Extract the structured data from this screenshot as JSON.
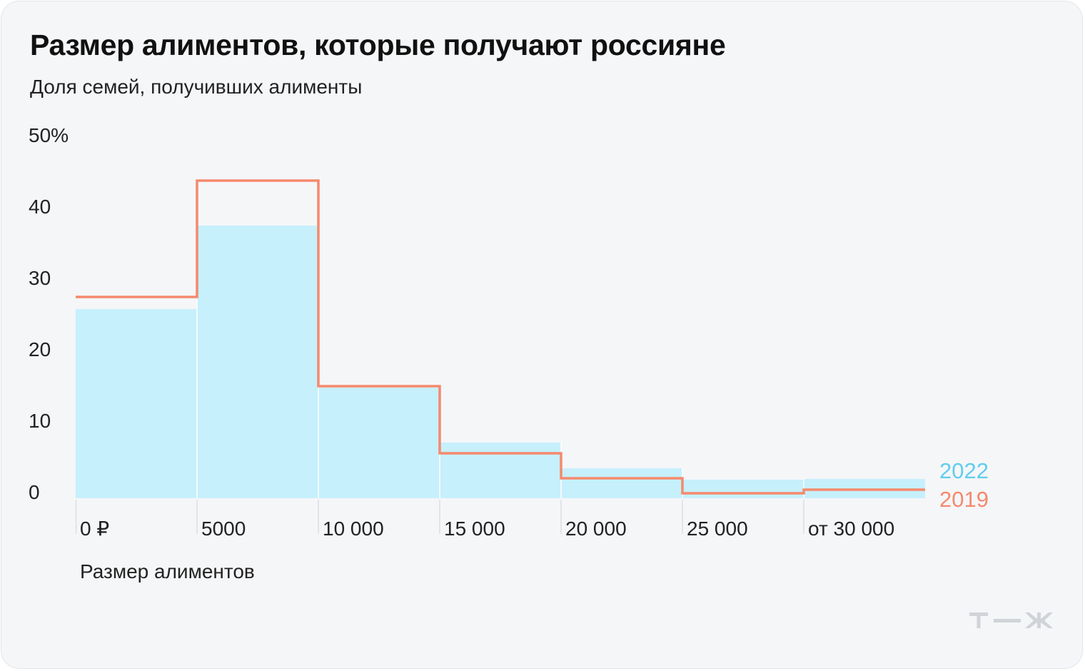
{
  "header": {
    "title": "Размер алиментов, которые получают россияне",
    "subtitle": "Доля семей, получивших алименты"
  },
  "chart_data": {
    "type": "bar",
    "categories": [
      "0 ₽",
      "5000",
      "10 000",
      "15 000",
      "20 000",
      "25 000",
      "от 30 000"
    ],
    "series": [
      {
        "name": "2022",
        "values": [
          26.5,
          38.2,
          15.5,
          7.8,
          4.2,
          2.6,
          2.7
        ],
        "color": "#c6f0fc",
        "label_color": "#5fcdee",
        "style": "bars"
      },
      {
        "name": "2019",
        "values": [
          28.2,
          44.5,
          15.7,
          6.3,
          2.8,
          0.7,
          1.2
        ],
        "color": "#f5896d",
        "style": "step-line"
      }
    ],
    "y_ticks": [
      "0",
      "10",
      "20",
      "30",
      "40",
      "50%"
    ],
    "ylim": [
      0,
      50
    ],
    "xlabel": "Размер алиментов",
    "ylabel": "",
    "grid": false,
    "legend_placement": "right-end-of-series"
  },
  "brand": {
    "logo": "tzh-logo-icon",
    "logo_color": "#d0d3d8"
  }
}
